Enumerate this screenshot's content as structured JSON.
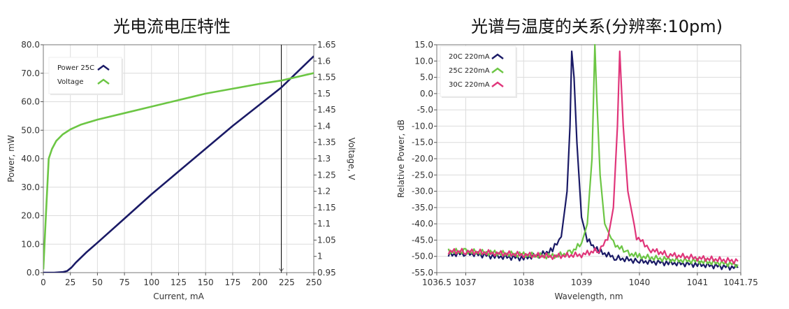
{
  "chart_data": [
    {
      "type": "line",
      "title": "光电流电压特性",
      "xlabel": "Current, mA",
      "ylabel": "Power, mW",
      "y2label": "Voltage, V",
      "xlim": [
        0,
        250
      ],
      "ylim": [
        0,
        80
      ],
      "y2lim": [
        0.95,
        1.65
      ],
      "xticks": [
        "0",
        "25",
        "50",
        "75",
        "100",
        "125",
        "150",
        "175",
        "200",
        "225",
        "250"
      ],
      "yticks": [
        "0.0",
        "10.0",
        "20.0",
        "30.0",
        "40.0",
        "50.0",
        "60.0",
        "70.0",
        "80.0"
      ],
      "y2ticks": [
        "0.95",
        "1",
        "1.05",
        "1.1",
        "1.15",
        "1.2",
        "1.25",
        "1.3",
        "1.35",
        "1.4",
        "1.45",
        "1.5",
        "1.55",
        "1.6",
        "1.65"
      ],
      "grid": true,
      "legend_position": "upper-left",
      "marker_line": {
        "x": 220,
        "color": "#000000"
      },
      "series": [
        {
          "name": "Power 25C",
          "color": "#1a1a66",
          "axis": "left",
          "x": [
            0,
            10,
            18,
            22,
            26,
            30,
            40,
            50,
            75,
            100,
            125,
            150,
            175,
            200,
            220,
            235,
            250
          ],
          "y": [
            0,
            0,
            0.2,
            0.6,
            1.8,
            3.5,
            7.2,
            10.5,
            19,
            27.5,
            35.5,
            43.5,
            51.5,
            59,
            65,
            70.5,
            76
          ]
        },
        {
          "name": "Voltage",
          "color": "#6cc644",
          "axis": "right",
          "x": [
            0,
            2,
            5,
            8,
            12,
            18,
            25,
            35,
            50,
            75,
            100,
            125,
            150,
            175,
            200,
            220,
            250
          ],
          "y": [
            0.96,
            1.1,
            1.3,
            1.33,
            1.355,
            1.375,
            1.39,
            1.405,
            1.42,
            1.44,
            1.46,
            1.48,
            1.5,
            1.515,
            1.53,
            1.54,
            1.563
          ]
        }
      ]
    },
    {
      "type": "line",
      "title": "光谱与温度的关系(分辨率:10pm)",
      "xlabel": "Wavelength, nm",
      "ylabel": "Relative Power, dB",
      "xlim": [
        1036.5,
        1041.75
      ],
      "ylim": [
        -55,
        15
      ],
      "xticks": [
        "1036.5",
        "1037",
        "1038",
        "1039",
        "1040",
        "1041",
        "1041.75"
      ],
      "yticks": [
        "15.0",
        "10.0",
        "5.0",
        "0.0",
        "-5.0",
        "-10.0",
        "-15.0",
        "-20.0",
        "-25.0",
        "-30.0",
        "-35.0",
        "-40.0",
        "-45.0",
        "-50.0",
        "-55.0"
      ],
      "grid": true,
      "legend_position": "upper-left",
      "series": [
        {
          "name": "20C 220mA",
          "color": "#1a1a66",
          "x": [
            1036.7,
            1037.0,
            1037.5,
            1038.0,
            1038.3,
            1038.5,
            1038.65,
            1038.75,
            1038.8,
            1038.83,
            1038.87,
            1038.92,
            1039.0,
            1039.1,
            1039.3,
            1039.6,
            1040.0,
            1040.5,
            1041.0,
            1041.7
          ],
          "y": [
            -49.5,
            -49,
            -50,
            -50.5,
            -49.5,
            -48,
            -44,
            -30,
            -10,
            13,
            5,
            -15,
            -38,
            -45,
            -48.5,
            -50.5,
            -51.5,
            -52,
            -52.5,
            -53.5
          ]
        },
        {
          "name": "25C 220mA",
          "color": "#6cc644",
          "x": [
            1036.7,
            1037.0,
            1037.5,
            1038.0,
            1038.5,
            1038.8,
            1039.0,
            1039.1,
            1039.18,
            1039.23,
            1039.26,
            1039.32,
            1039.4,
            1039.55,
            1039.8,
            1040.0,
            1040.5,
            1041.0,
            1041.7
          ],
          "y": [
            -48.5,
            -48.5,
            -49,
            -49.5,
            -50,
            -49,
            -46,
            -40,
            -20,
            15,
            0,
            -25,
            -40,
            -46,
            -49,
            -50,
            -51,
            -51.5,
            -52.5
          ]
        },
        {
          "name": "30C 220mA",
          "color": "#e0357a",
          "x": [
            1036.7,
            1037.0,
            1037.5,
            1038.0,
            1038.5,
            1039.0,
            1039.3,
            1039.45,
            1039.55,
            1039.62,
            1039.66,
            1039.72,
            1039.8,
            1039.95,
            1040.2,
            1040.5,
            1041.0,
            1041.7
          ],
          "y": [
            -48.5,
            -48.5,
            -49,
            -49.5,
            -50,
            -49.5,
            -48,
            -45,
            -35,
            -10,
            13,
            -10,
            -30,
            -44,
            -48,
            -49.5,
            -50.5,
            -51.5
          ]
        }
      ]
    }
  ]
}
